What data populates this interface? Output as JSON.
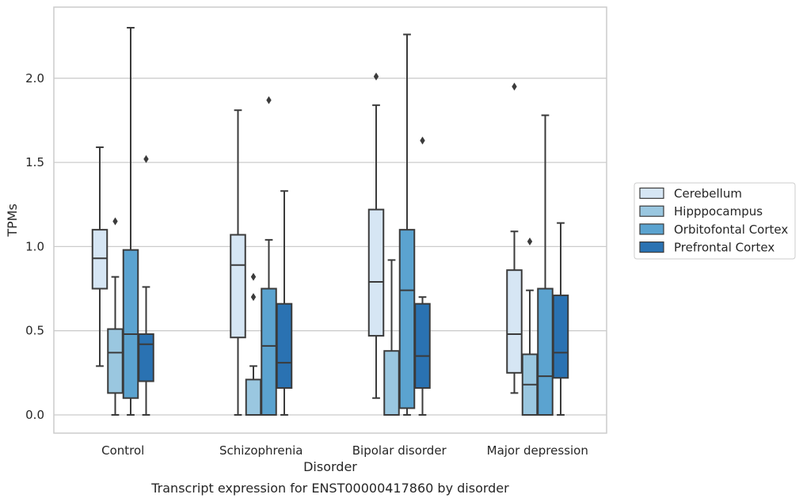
{
  "chart_data": {
    "type": "boxplot",
    "xlabel": "Disorder",
    "ylabel": "TPMs",
    "caption": "Transcript expression for ENST00000417860 by disorder",
    "ylim": [
      -0.11,
      2.43
    ],
    "yticks": [
      0.0,
      0.5,
      1.0,
      1.5,
      2.0
    ],
    "ytick_labels": [
      "0.0",
      "0.5",
      "1.0",
      "1.5",
      "2.0"
    ],
    "grid": "horizontal",
    "legend_position": "right",
    "categories": [
      "Control",
      "Schizophrenia",
      "Bipolar disorder",
      "Major depression"
    ],
    "series": [
      {
        "name": "Cerebellum",
        "color": "#d6e6f4",
        "boxes": [
          {
            "whisker_low": 0.29,
            "q1": 0.75,
            "median": 0.93,
            "q3": 1.1,
            "whisker_high": 1.59,
            "outliers": []
          },
          {
            "whisker_low": 0.0,
            "q1": 0.46,
            "median": 0.89,
            "q3": 1.07,
            "whisker_high": 1.81,
            "outliers": []
          },
          {
            "whisker_low": 0.1,
            "q1": 0.47,
            "median": 0.79,
            "q3": 1.22,
            "whisker_high": 1.84,
            "outliers": [
              2.01
            ]
          },
          {
            "whisker_low": 0.13,
            "q1": 0.25,
            "median": 0.48,
            "q3": 0.86,
            "whisker_high": 1.09,
            "outliers": [
              1.95
            ]
          }
        ]
      },
      {
        "name": "Hipppocampus",
        "color": "#9ac7e0",
        "boxes": [
          {
            "whisker_low": 0.0,
            "q1": 0.13,
            "median": 0.37,
            "q3": 0.51,
            "whisker_high": 0.82,
            "outliers": [
              1.15
            ]
          },
          {
            "whisker_low": 0.0,
            "q1": 0.0,
            "median": 0.0,
            "q3": 0.21,
            "whisker_high": 0.29,
            "outliers": [
              0.7,
              0.82
            ]
          },
          {
            "whisker_low": 0.0,
            "q1": 0.0,
            "median": 0.0,
            "q3": 0.38,
            "whisker_high": 0.92,
            "outliers": []
          },
          {
            "whisker_low": 0.0,
            "q1": 0.0,
            "median": 0.18,
            "q3": 0.36,
            "whisker_high": 0.74,
            "outliers": [
              1.03
            ]
          }
        ]
      },
      {
        "name": "Orbitofontal Cortex",
        "color": "#5ba3d0",
        "boxes": [
          {
            "whisker_low": 0.0,
            "q1": 0.1,
            "median": 0.48,
            "q3": 0.98,
            "whisker_high": 2.3,
            "outliers": []
          },
          {
            "whisker_low": 0.0,
            "q1": 0.0,
            "median": 0.41,
            "q3": 0.75,
            "whisker_high": 1.04,
            "outliers": [
              1.87
            ]
          },
          {
            "whisker_low": 0.0,
            "q1": 0.04,
            "median": 0.74,
            "q3": 1.1,
            "whisker_high": 2.26,
            "outliers": []
          },
          {
            "whisker_low": 0.0,
            "q1": 0.0,
            "median": 0.23,
            "q3": 0.75,
            "whisker_high": 1.78,
            "outliers": []
          }
        ]
      },
      {
        "name": "Prefrontal Cortex",
        "color": "#2a72b2",
        "boxes": [
          {
            "whisker_low": 0.0,
            "q1": 0.2,
            "median": 0.42,
            "q3": 0.48,
            "whisker_high": 0.76,
            "outliers": [
              1.52
            ]
          },
          {
            "whisker_low": 0.0,
            "q1": 0.16,
            "median": 0.31,
            "q3": 0.66,
            "whisker_high": 1.33,
            "outliers": []
          },
          {
            "whisker_low": 0.0,
            "q1": 0.16,
            "median": 0.35,
            "q3": 0.66,
            "whisker_high": 0.7,
            "outliers": [
              1.63
            ]
          },
          {
            "whisker_low": 0.0,
            "q1": 0.22,
            "median": 0.37,
            "q3": 0.71,
            "whisker_high": 1.14,
            "outliers": []
          }
        ]
      }
    ]
  }
}
